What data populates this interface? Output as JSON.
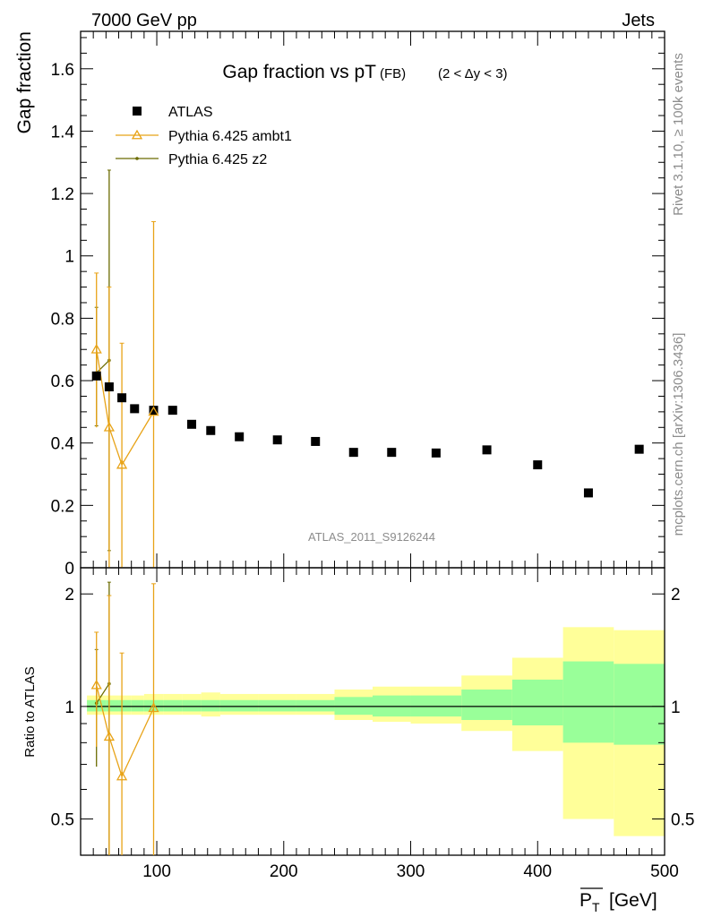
{
  "header": {
    "left": "7000 GeV pp",
    "right": "Jets"
  },
  "side_labels": {
    "rivet": "Rivet 3.1.10, ≥ 100k events",
    "mcplots": "mcplots.cern.ch [arXiv:1306.3436]"
  },
  "colors": {
    "atlas": "#000000",
    "ambt1": "#e8a317",
    "z2": "#6b6b00",
    "band_inner": "#99ff99",
    "band_outer": "#ffff99"
  },
  "chart_data": [
    {
      "type": "scatter",
      "title": "Gap fraction vs pT",
      "title_sub": "(FB)",
      "title_range": "(2 < Δy < 3)",
      "ylabel": "Gap fraction",
      "watermark": "ATLAS_2011_S9126244",
      "xlim": [
        40,
        500
      ],
      "ylim": [
        0,
        1.72
      ],
      "y_ticks": [
        "0",
        "0.2",
        "0.4",
        "0.6",
        "0.8",
        "1",
        "1.2",
        "1.4",
        "1.6"
      ],
      "legend_position": "top-left",
      "series": [
        {
          "name": "ATLAS",
          "marker": "square",
          "x": [
            52.5,
            62.5,
            72.5,
            82.5,
            97.5,
            112.5,
            127.5,
            142.5,
            165,
            195,
            225,
            255,
            285,
            320,
            360,
            400,
            440,
            480
          ],
          "y": [
            0.615,
            0.58,
            0.545,
            0.51,
            0.505,
            0.505,
            0.46,
            0.44,
            0.42,
            0.41,
            0.405,
            0.37,
            0.37,
            0.368,
            0.378,
            0.33,
            0.24,
            0.38
          ]
        },
        {
          "name": "Pythia 6.425 ambt1",
          "marker": "triangle",
          "x": [
            52.5,
            62.5,
            72.5,
            97.5
          ],
          "y": [
            0.7,
            0.45,
            0.33,
            0.5
          ],
          "err_low": [
            0.25,
            0.45,
            0.33,
            0.5
          ],
          "err_high": [
            0.245,
            0.45,
            0.39,
            0.61
          ]
        },
        {
          "name": "Pythia 6.425 z2",
          "marker": "dot",
          "x": [
            52.5,
            62.5
          ],
          "y": [
            0.625,
            0.665
          ],
          "err_low": [
            0.17,
            0.61
          ],
          "err_high": [
            0.21,
            0.61
          ]
        }
      ]
    },
    {
      "type": "area",
      "ylabel": "Ratio to ATLAS",
      "xlabel": "P_T [GeV]",
      "xlim": [
        40,
        500
      ],
      "ylim": [
        0.4,
        2.35
      ],
      "scale": "log",
      "x_ticks": [
        "100",
        "200",
        "300",
        "400",
        "500"
      ],
      "y_ticks": [
        "0.5",
        "1",
        "2"
      ],
      "bins": [
        {
          "lo": 45,
          "hi": 60,
          "inner": [
            0.97,
            1.04
          ],
          "outer": [
            0.95,
            1.07
          ]
        },
        {
          "lo": 60,
          "hi": 70,
          "inner": [
            0.97,
            1.04
          ],
          "outer": [
            0.95,
            1.07
          ]
        },
        {
          "lo": 70,
          "hi": 80,
          "inner": [
            0.97,
            1.04
          ],
          "outer": [
            0.95,
            1.07
          ]
        },
        {
          "lo": 80,
          "hi": 90,
          "inner": [
            0.97,
            1.04
          ],
          "outer": [
            0.95,
            1.07
          ]
        },
        {
          "lo": 90,
          "hi": 105,
          "inner": [
            0.97,
            1.04
          ],
          "outer": [
            0.95,
            1.08
          ]
        },
        {
          "lo": 105,
          "hi": 120,
          "inner": [
            0.97,
            1.04
          ],
          "outer": [
            0.95,
            1.08
          ]
        },
        {
          "lo": 120,
          "hi": 135,
          "inner": [
            0.97,
            1.04
          ],
          "outer": [
            0.95,
            1.08
          ]
        },
        {
          "lo": 135,
          "hi": 150,
          "inner": [
            0.97,
            1.04
          ],
          "outer": [
            0.94,
            1.09
          ]
        },
        {
          "lo": 150,
          "hi": 180,
          "inner": [
            0.97,
            1.04
          ],
          "outer": [
            0.95,
            1.08
          ]
        },
        {
          "lo": 180,
          "hi": 210,
          "inner": [
            0.97,
            1.04
          ],
          "outer": [
            0.95,
            1.08
          ]
        },
        {
          "lo": 210,
          "hi": 240,
          "inner": [
            0.97,
            1.04
          ],
          "outer": [
            0.95,
            1.08
          ]
        },
        {
          "lo": 240,
          "hi": 270,
          "inner": [
            0.95,
            1.06
          ],
          "outer": [
            0.92,
            1.11
          ]
        },
        {
          "lo": 270,
          "hi": 300,
          "inner": [
            0.94,
            1.07
          ],
          "outer": [
            0.91,
            1.13
          ]
        },
        {
          "lo": 300,
          "hi": 340,
          "inner": [
            0.94,
            1.07
          ],
          "outer": [
            0.9,
            1.13
          ]
        },
        {
          "lo": 340,
          "hi": 380,
          "inner": [
            0.92,
            1.11
          ],
          "outer": [
            0.86,
            1.21
          ]
        },
        {
          "lo": 380,
          "hi": 420,
          "inner": [
            0.89,
            1.18
          ],
          "outer": [
            0.76,
            1.35
          ]
        },
        {
          "lo": 420,
          "hi": 460,
          "inner": [
            0.8,
            1.32
          ],
          "outer": [
            0.5,
            1.63
          ]
        },
        {
          "lo": 460,
          "hi": 500,
          "inner": [
            0.79,
            1.3
          ],
          "outer": [
            0.45,
            1.6
          ]
        }
      ],
      "series": [
        {
          "name": "Pythia 6.425 ambt1",
          "x": [
            52.5,
            62.5,
            72.5,
            97.5
          ],
          "y": [
            1.14,
            0.83,
            0.65,
            0.99
          ],
          "err_low": [
            0.36,
            0.83,
            0.65,
            0.99
          ],
          "err_high": [
            0.44,
            1.15,
            0.74,
            1.14
          ]
        },
        {
          "name": "Pythia 6.425 z2",
          "x": [
            52.5,
            62.5
          ],
          "y": [
            1.02,
            1.15
          ],
          "err_low": [
            0.33,
            1.15
          ],
          "err_high": [
            0.4,
            1.0
          ]
        }
      ]
    }
  ]
}
